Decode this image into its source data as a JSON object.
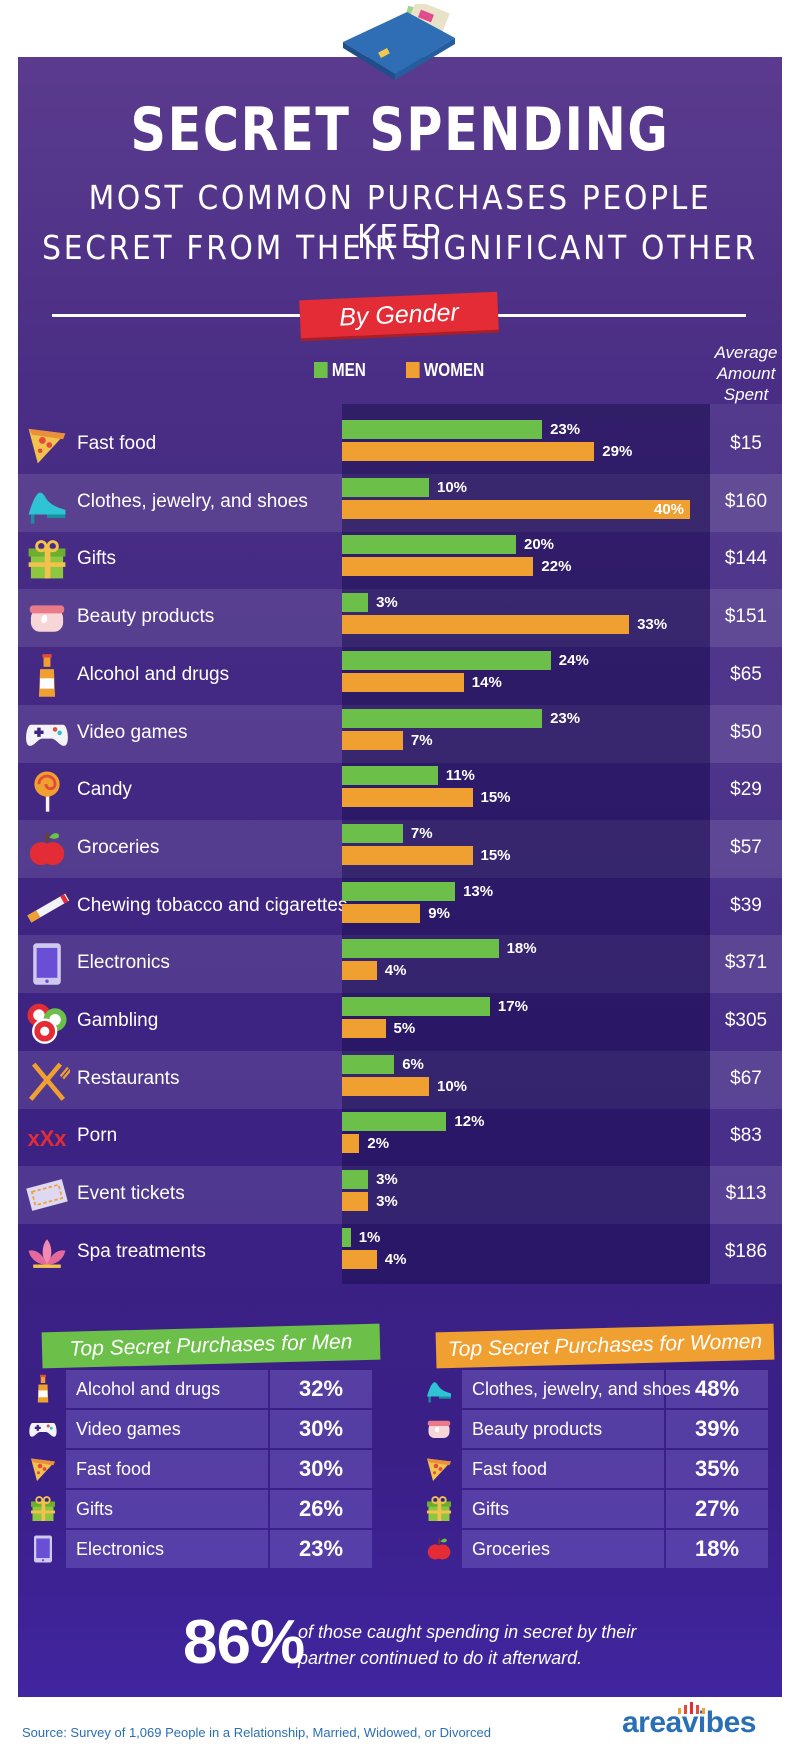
{
  "title": "SECRET SPENDING",
  "subtitle_line1": "MOST COMMON PURCHASES PEOPLE KEEP",
  "subtitle_line2": "SECRET FROM THEIR SIGNIFICANT OTHER",
  "section_label": "By Gender",
  "legend": {
    "men": "MEN",
    "women": "WOMEN"
  },
  "avg_header": [
    "Average",
    "Amount",
    "Spent"
  ],
  "colors": {
    "men": "#6cc04a",
    "women": "#f0a031",
    "panel": "#3d2382",
    "ribbon": "#e32c36"
  },
  "chart_data": {
    "type": "bar",
    "orientation": "horizontal",
    "categories": [
      "Fast food",
      "Clothes, jewelry, and shoes",
      "Gifts",
      "Beauty products",
      "Alcohol and drugs",
      "Video games",
      "Candy",
      "Groceries",
      "Chewing tobacco and cigarettes",
      "Electronics",
      "Gambling",
      "Restaurants",
      "Porn",
      "Event tickets",
      "Spa treatments"
    ],
    "icons": [
      "pizza-icon",
      "high-heel-icon",
      "gift-icon",
      "cosmetics-jar-icon",
      "bottle-icon",
      "gamepad-icon",
      "lollipop-icon",
      "apple-icon",
      "cigarette-icon",
      "tablet-icon",
      "poker-chips-icon",
      "fork-knife-icon",
      "xxx-icon",
      "ticket-icon",
      "lotus-icon"
    ],
    "series": [
      {
        "name": "MEN",
        "values": [
          23,
          10,
          20,
          3,
          24,
          23,
          11,
          7,
          13,
          18,
          17,
          6,
          12,
          3,
          1
        ]
      },
      {
        "name": "WOMEN",
        "values": [
          29,
          40,
          22,
          33,
          14,
          7,
          15,
          15,
          9,
          4,
          5,
          10,
          2,
          3,
          4
        ]
      }
    ],
    "value_labels": {
      "men": [
        "23%",
        "10%",
        "20%",
        "3%",
        "24%",
        "23%",
        "11%",
        "7%",
        "13%",
        "18%",
        "17%",
        "6%",
        "12%",
        "3%",
        "1%"
      ],
      "women": [
        "29%",
        "40%",
        "22%",
        "33%",
        "14%",
        "7%",
        "15%",
        "15%",
        "9%",
        "4%",
        "5%",
        "10%",
        "2%",
        "3%",
        "4%"
      ]
    },
    "average_amount_spent": [
      "$15",
      "$160",
      "$144",
      "$151",
      "$65",
      "$50",
      "$29",
      "$57",
      "$39",
      "$371",
      "$305",
      "$67",
      "$83",
      "$113",
      "$186"
    ],
    "xlim": [
      0,
      40
    ],
    "unit": "%"
  },
  "top_men": {
    "title": "Top Secret Purchases for Men",
    "items": [
      {
        "name": "Alcohol and drugs",
        "pct": "32%",
        "icon": "bottle-icon"
      },
      {
        "name": "Video games",
        "pct": "30%",
        "icon": "gamepad-icon"
      },
      {
        "name": "Fast food",
        "pct": "30%",
        "icon": "pizza-icon"
      },
      {
        "name": "Gifts",
        "pct": "26%",
        "icon": "gift-icon"
      },
      {
        "name": "Electronics",
        "pct": "23%",
        "icon": "tablet-icon"
      }
    ]
  },
  "top_women": {
    "title": "Top Secret Purchases for Women",
    "items": [
      {
        "name": "Clothes, jewelry, and shoes",
        "pct": "48%",
        "icon": "high-heel-icon"
      },
      {
        "name": "Beauty products",
        "pct": "39%",
        "icon": "cosmetics-jar-icon"
      },
      {
        "name": "Fast food",
        "pct": "35%",
        "icon": "pizza-icon"
      },
      {
        "name": "Gifts",
        "pct": "27%",
        "icon": "gift-icon"
      },
      {
        "name": "Groceries",
        "pct": "18%",
        "icon": "apple-icon"
      }
    ]
  },
  "stat": {
    "value": "86%",
    "text": "of those caught spending in secret by their partner continued to do it afterward."
  },
  "source": "Source: Survey of 1,069 People in a Relationship, Married, Widowed, or Divorced",
  "brand": "areavibes"
}
